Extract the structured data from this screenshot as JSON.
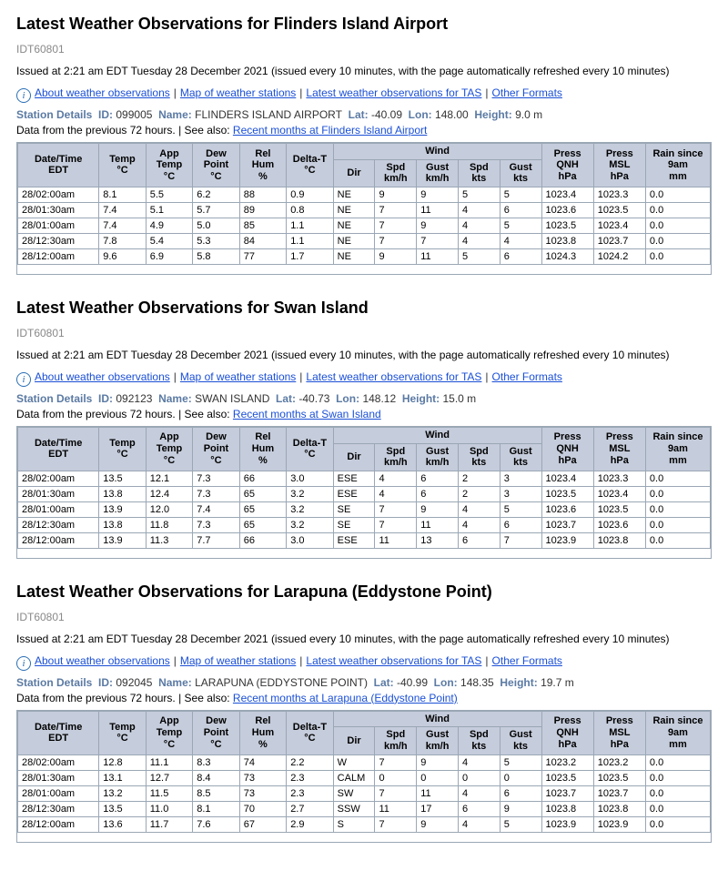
{
  "common": {
    "idcode": "IDT60801",
    "issued": "Issued at 2:21 am EDT Tuesday 28 December 2021 (issued every 10 minutes, with the page automatically refreshed every 10 minutes)",
    "links": {
      "about": "About weather observations",
      "map": "Map of weather stations",
      "latest": "Latest weather observations for TAS",
      "other": "Other Formats"
    },
    "labels": {
      "stationDetails": "Station Details",
      "id": "ID:",
      "name": "Name:",
      "lat": "Lat:",
      "lon": "Lon:",
      "height": "Height:",
      "seeAlsoPrefix": "Data from the previous 72 hours. | See also:"
    },
    "headers": {
      "datetime": "Date/Time EDT",
      "temp": "Temp °C",
      "apptemp": "App Temp °C",
      "dewpoint": "Dew Point °C",
      "relhum": "Rel Hum %",
      "deltat": "Delta-T °C",
      "wind": "Wind",
      "dir": "Dir",
      "spdkmh": "Spd km/h",
      "gustkmh": "Gust km/h",
      "spdkts": "Spd kts",
      "gustkts": "Gust kts",
      "pressqnh": "Press QNH hPa",
      "pressmsl": "Press MSL hPa",
      "rain": "Rain since 9am mm"
    }
  },
  "stations": [
    {
      "title": "Latest Weather Observations for Flinders Island Airport",
      "id": "099005",
      "name": "FLINDERS ISLAND AIRPORT",
      "lat": "-40.09",
      "lon": "148.00",
      "height": "9.0 m",
      "seeAlso": "Recent months at Flinders Island Airport",
      "rows": [
        {
          "dt": "28/02:00am",
          "temp": "8.1",
          "app": "5.5",
          "dew": "6.2",
          "rh": "88",
          "dt2": "0.9",
          "dir": "NE",
          "skmh": "9",
          "gkmh": "9",
          "skts": "5",
          "gkts": "5",
          "qnh": "1023.4",
          "msl": "1023.3",
          "rain": "0.0"
        },
        {
          "dt": "28/01:30am",
          "temp": "7.4",
          "app": "5.1",
          "dew": "5.7",
          "rh": "89",
          "dt2": "0.8",
          "dir": "NE",
          "skmh": "7",
          "gkmh": "11",
          "skts": "4",
          "gkts": "6",
          "qnh": "1023.6",
          "msl": "1023.5",
          "rain": "0.0"
        },
        {
          "dt": "28/01:00am",
          "temp": "7.4",
          "app": "4.9",
          "dew": "5.0",
          "rh": "85",
          "dt2": "1.1",
          "dir": "NE",
          "skmh": "7",
          "gkmh": "9",
          "skts": "4",
          "gkts": "5",
          "qnh": "1023.5",
          "msl": "1023.4",
          "rain": "0.0"
        },
        {
          "dt": "28/12:30am",
          "temp": "7.8",
          "app": "5.4",
          "dew": "5.3",
          "rh": "84",
          "dt2": "1.1",
          "dir": "NE",
          "skmh": "7",
          "gkmh": "7",
          "skts": "4",
          "gkts": "4",
          "qnh": "1023.8",
          "msl": "1023.7",
          "rain": "0.0"
        },
        {
          "dt": "28/12:00am",
          "temp": "9.6",
          "app": "6.9",
          "dew": "5.8",
          "rh": "77",
          "dt2": "1.7",
          "dir": "NE",
          "skmh": "9",
          "gkmh": "11",
          "skts": "5",
          "gkts": "6",
          "qnh": "1024.3",
          "msl": "1024.2",
          "rain": "0.0"
        }
      ]
    },
    {
      "title": "Latest Weather Observations for Swan Island",
      "id": "092123",
      "name": "SWAN ISLAND",
      "lat": "-40.73",
      "lon": "148.12",
      "height": "15.0 m",
      "seeAlso": "Recent months at Swan Island",
      "rows": [
        {
          "dt": "28/02:00am",
          "temp": "13.5",
          "app": "12.1",
          "dew": "7.3",
          "rh": "66",
          "dt2": "3.0",
          "dir": "ESE",
          "skmh": "4",
          "gkmh": "6",
          "skts": "2",
          "gkts": "3",
          "qnh": "1023.4",
          "msl": "1023.3",
          "rain": "0.0"
        },
        {
          "dt": "28/01:30am",
          "temp": "13.8",
          "app": "12.4",
          "dew": "7.3",
          "rh": "65",
          "dt2": "3.2",
          "dir": "ESE",
          "skmh": "4",
          "gkmh": "6",
          "skts": "2",
          "gkts": "3",
          "qnh": "1023.5",
          "msl": "1023.4",
          "rain": "0.0"
        },
        {
          "dt": "28/01:00am",
          "temp": "13.9",
          "app": "12.0",
          "dew": "7.4",
          "rh": "65",
          "dt2": "3.2",
          "dir": "SE",
          "skmh": "7",
          "gkmh": "9",
          "skts": "4",
          "gkts": "5",
          "qnh": "1023.6",
          "msl": "1023.5",
          "rain": "0.0"
        },
        {
          "dt": "28/12:30am",
          "temp": "13.8",
          "app": "11.8",
          "dew": "7.3",
          "rh": "65",
          "dt2": "3.2",
          "dir": "SE",
          "skmh": "7",
          "gkmh": "11",
          "skts": "4",
          "gkts": "6",
          "qnh": "1023.7",
          "msl": "1023.6",
          "rain": "0.0"
        },
        {
          "dt": "28/12:00am",
          "temp": "13.9",
          "app": "11.3",
          "dew": "7.7",
          "rh": "66",
          "dt2": "3.0",
          "dir": "ESE",
          "skmh": "11",
          "gkmh": "13",
          "skts": "6",
          "gkts": "7",
          "qnh": "1023.9",
          "msl": "1023.8",
          "rain": "0.0"
        }
      ]
    },
    {
      "title": "Latest Weather Observations for Larapuna (Eddystone Point)",
      "id": "092045",
      "name": "LARAPUNA (EDDYSTONE POINT)",
      "lat": "-40.99",
      "lon": "148.35",
      "height": "19.7 m",
      "seeAlso": "Recent months at Larapuna (Eddystone Point)",
      "rows": [
        {
          "dt": "28/02:00am",
          "temp": "12.8",
          "app": "11.1",
          "dew": "8.3",
          "rh": "74",
          "dt2": "2.2",
          "dir": "W",
          "skmh": "7",
          "gkmh": "9",
          "skts": "4",
          "gkts": "5",
          "qnh": "1023.2",
          "msl": "1023.2",
          "rain": "0.0"
        },
        {
          "dt": "28/01:30am",
          "temp": "13.1",
          "app": "12.7",
          "dew": "8.4",
          "rh": "73",
          "dt2": "2.3",
          "dir": "CALM",
          "skmh": "0",
          "gkmh": "0",
          "skts": "0",
          "gkts": "0",
          "qnh": "1023.5",
          "msl": "1023.5",
          "rain": "0.0"
        },
        {
          "dt": "28/01:00am",
          "temp": "13.2",
          "app": "11.5",
          "dew": "8.5",
          "rh": "73",
          "dt2": "2.3",
          "dir": "SW",
          "skmh": "7",
          "gkmh": "11",
          "skts": "4",
          "gkts": "6",
          "qnh": "1023.7",
          "msl": "1023.7",
          "rain": "0.0"
        },
        {
          "dt": "28/12:30am",
          "temp": "13.5",
          "app": "11.0",
          "dew": "8.1",
          "rh": "70",
          "dt2": "2.7",
          "dir": "SSW",
          "skmh": "11",
          "gkmh": "17",
          "skts": "6",
          "gkts": "9",
          "qnh": "1023.8",
          "msl": "1023.8",
          "rain": "0.0"
        },
        {
          "dt": "28/12:00am",
          "temp": "13.6",
          "app": "11.7",
          "dew": "7.6",
          "rh": "67",
          "dt2": "2.9",
          "dir": "S",
          "skmh": "7",
          "gkmh": "9",
          "skts": "4",
          "gkts": "5",
          "qnh": "1023.9",
          "msl": "1023.9",
          "rain": "0.0"
        }
      ]
    }
  ]
}
